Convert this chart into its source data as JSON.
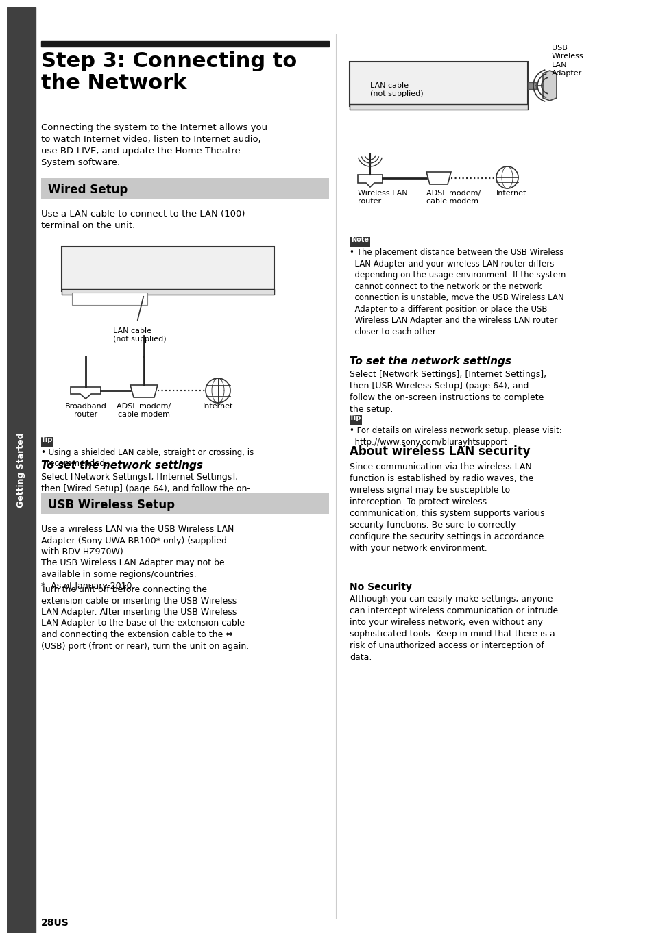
{
  "page_bg": "#ffffff",
  "sidebar_bg": "#404040",
  "sidebar_text": "Getting Started",
  "sidebar_text_color": "#ffffff",
  "title_bar_color": "#1a1a1a",
  "title": "Step 3: Connecting to\nthe Network",
  "title_fontsize": 22,
  "intro_text": "Connecting the system to the Internet allows you\nto watch Internet video, listen to Internet audio,\nuse BD-LIVE, and update the Home Theatre\nSystem software.",
  "wired_setup_header": "Wired Setup",
  "wired_setup_bg": "#c8c8c8",
  "wired_text1": "Use a LAN cable to connect to the LAN (100)\nterminal on the unit.",
  "wired_tip_label": "Tip",
  "wired_tip_text": "• Using a shielded LAN cable, straight or crossing, is\n  recommended.",
  "wired_network_title": "To set the network settings",
  "wired_network_text": "Select [Network Settings], [Internet Settings],\nthen [Wired Setup] (page 64), and follow the on-\nscreen instructions to complete the setup.",
  "usb_setup_header": "USB Wireless Setup",
  "usb_setup_bg": "#c8c8c8",
  "usb_text1": "Use a wireless LAN via the USB Wireless LAN\nAdapter (Sony UWA-BR100* only) (supplied\nwith BDV-HZ970W).\nThe USB Wireless LAN Adapter may not be\navailable in some regions/countries.\n*  As of January 2010.",
  "usb_text2": "Turn the unit off before connecting the\nextension cable or inserting the USB Wireless\nLAN Adapter. After inserting the USB Wireless\nLAN Adapter to the base of the extension cable\nand connecting the extension cable to the ⇔\n(USB) port (front or rear), turn the unit on again.",
  "note_label": "Note",
  "note_text": "• The placement distance between the USB Wireless\n  LAN Adapter and your wireless LAN router differs\n  depending on the usage environment. If the system\n  cannot connect to the network or the network\n  connection is unstable, move the USB Wireless LAN\n  Adapter to a different position or place the USB\n  Wireless LAN Adapter and the wireless LAN router\n  closer to each other.",
  "usb_network_title": "To set the network settings",
  "usb_network_text": "Select [Network Settings], [Internet Settings],\nthen [USB Wireless Setup] (page 64), and\nfollow the on-screen instructions to complete\nthe setup.",
  "usb_tip_label": "Tip",
  "usb_tip_text": "• For details on wireless network setup, please visit:\n  http://www.sony.com/blurayhtsupport",
  "wireless_security_title": "About wireless LAN security",
  "wireless_security_text": "Since communication via the wireless LAN\nfunction is established by radio waves, the\nwireless signal may be susceptible to\ninterception. To protect wireless\ncommunication, this system supports various\nsecurity functions. Be sure to correctly\nconfigure the security settings in accordance\nwith your network environment.",
  "no_security_title": "No Security",
  "no_security_text": "Although you can easily make settings, anyone\ncan intercept wireless communication or intrude\ninto your wireless network, even without any\nsophisticated tools. Keep in mind that there is a\nrisk of unauthorized access or interception of\ndata.",
  "page_number": "28US",
  "label_lan_cable": "LAN cable\n(not supplied)",
  "label_wireless_lan": "Wireless LAN\nrouter",
  "label_adsl": "ADSL modem/\ncable modem",
  "label_internet": "Internet",
  "label_usb": "USB\nWireless\nLAN\nAdapter",
  "label_broadband": "Broadband\nrouter",
  "right_label_lan": "LAN cable\n(not supplied)",
  "right_label_wireless": "Wireless LAN\nrouter",
  "right_label_adsl": "ADSL modem/\ncable modem",
  "right_label_internet": "Internet"
}
